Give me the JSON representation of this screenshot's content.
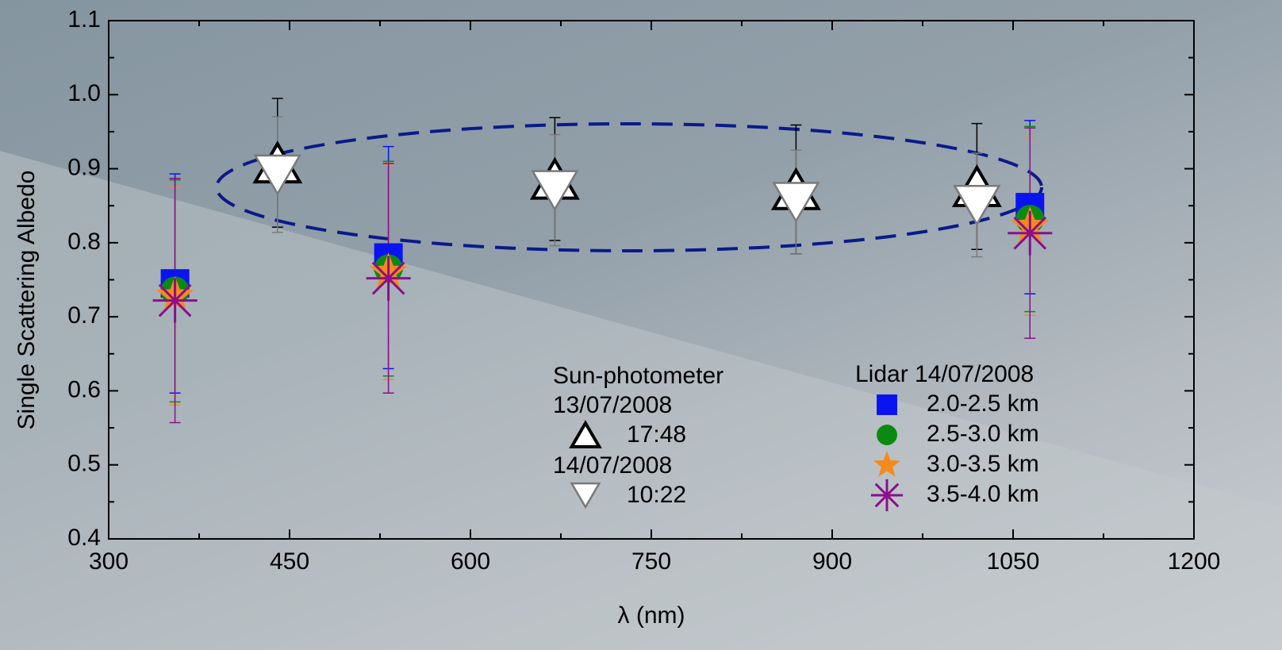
{
  "chart_data": {
    "type": "scatter",
    "xlabel": "λ (nm)",
    "ylabel": "Single Scattering Albedo",
    "xlim": [
      300,
      1200
    ],
    "xticks": [
      300,
      450,
      600,
      750,
      900,
      1050,
      1200
    ],
    "ylim": [
      0.4,
      1.1
    ],
    "yticks": [
      0.4,
      0.5,
      0.6,
      0.7,
      0.8,
      0.9,
      {
        "value": 1,
        "label": "1.0"
      },
      1.1
    ],
    "legend": {
      "sun_title": "Sun-photometer",
      "lidar_title": "Lidar 14/07/2008"
    },
    "series": [
      {
        "name": "2.0-2.5 km",
        "marker": "square",
        "color": "#0a14f0",
        "x": [
          355,
          532,
          1064
        ],
        "values": [
          0.745,
          0.78,
          0.848
        ],
        "errors": [
          0.148,
          0.15,
          0.117
        ]
      },
      {
        "name": "2.5-3.0 km",
        "marker": "circle",
        "color": "#0b8a12",
        "x": [
          355,
          532,
          1064
        ],
        "values": [
          0.735,
          0.765,
          0.832
        ],
        "errors": [
          0.15,
          0.145,
          0.125
        ]
      },
      {
        "name": "3.0-3.5 km",
        "marker": "star",
        "color": "#f58a1c",
        "x": [
          355,
          532,
          1064
        ],
        "values": [
          0.728,
          0.76,
          0.822
        ],
        "errors": [
          0.147,
          0.145,
          0.12
        ]
      },
      {
        "name": "3.5-4.0 km",
        "marker": "asterisk",
        "color": "#8b0f8b",
        "x": [
          355,
          532,
          1064
        ],
        "values": [
          0.722,
          0.752,
          0.813
        ],
        "errors": [
          0.165,
          0.155,
          0.142
        ]
      },
      {
        "name": "17:48",
        "date": "13/07/2008",
        "marker": "triangle-up",
        "color": "#000000",
        "x": [
          440,
          670,
          870,
          1020
        ],
        "values": [
          0.908,
          0.886,
          0.872,
          0.876
        ],
        "errors": [
          0.087,
          0.083,
          0.087,
          0.085
        ]
      },
      {
        "name": "10:22",
        "date": "14/07/2008",
        "marker": "triangle-down",
        "color": "#7a7a7a",
        "x": [
          440,
          670,
          870,
          1020
        ],
        "values": [
          0.892,
          0.871,
          0.855,
          0.851
        ],
        "errors": [
          0.078,
          0.075,
          0.07,
          0.07
        ]
      }
    ]
  }
}
